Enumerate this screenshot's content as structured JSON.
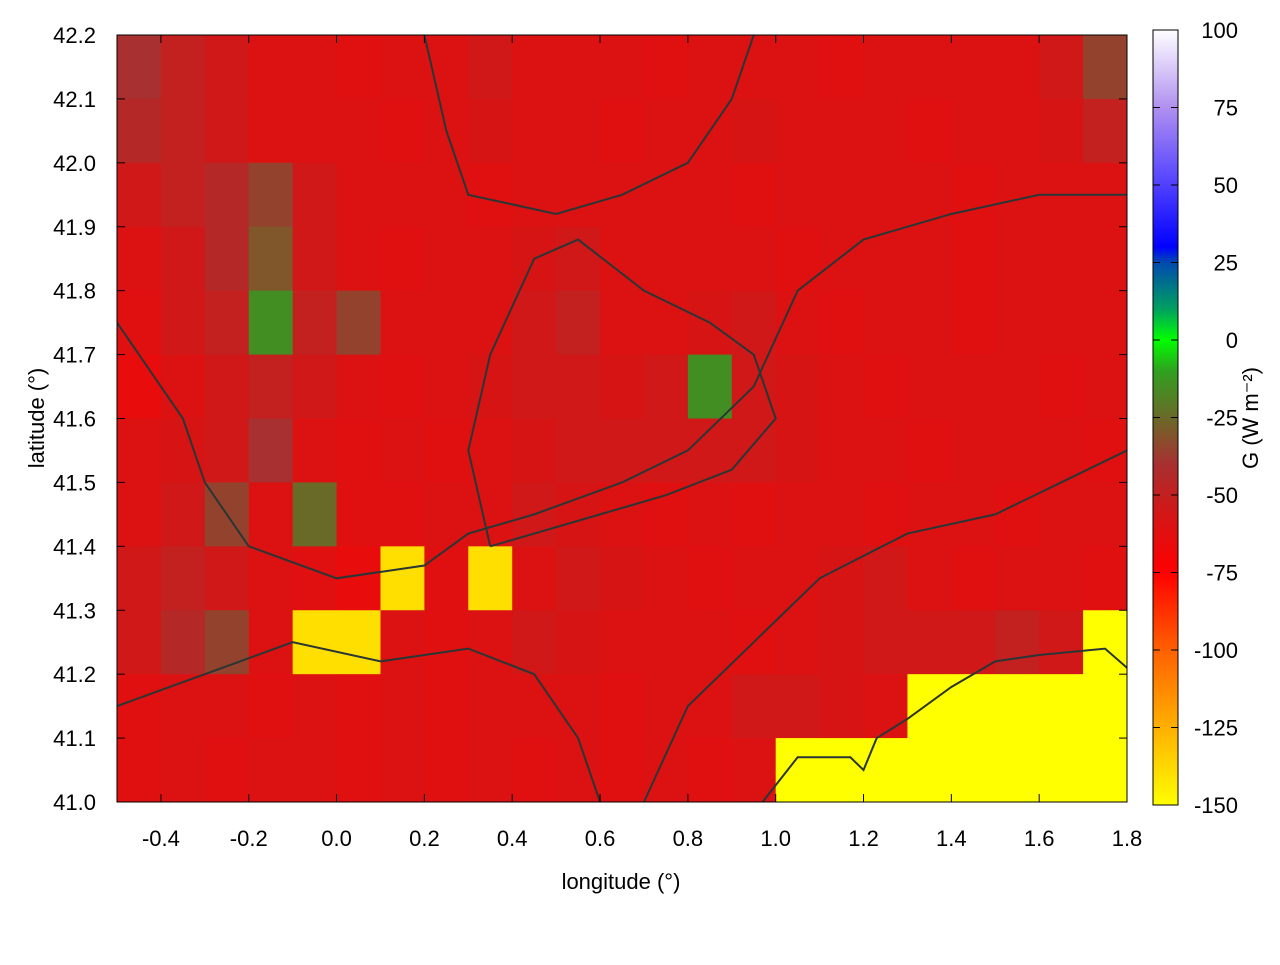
{
  "chart_data": {
    "type": "heatmap",
    "title": "",
    "xlabel": "longitude (°)",
    "ylabel": "latitude (°)",
    "colorbar_label": "G (W m⁻²)",
    "xlim": [
      -0.5,
      1.8
    ],
    "ylim": [
      41.0,
      42.2
    ],
    "clim": [
      -150,
      100
    ],
    "grid": false,
    "x_ticks": [
      "-0.4",
      "-0.2",
      "0.0",
      "0.2",
      "0.4",
      "0.6",
      "0.8",
      "1.0",
      "1.2",
      "1.4",
      "1.6",
      "1.8"
    ],
    "y_ticks": [
      "41.0",
      "41.1",
      "41.2",
      "41.3",
      "41.4",
      "41.5",
      "41.6",
      "41.7",
      "41.8",
      "41.9",
      "42.0",
      "42.1",
      "42.2"
    ],
    "colorbar_ticks": [
      "100",
      "75",
      "50",
      "25",
      "0",
      "-25",
      "-50",
      "-75",
      "-100",
      "-125",
      "-150"
    ],
    "colormap": [
      {
        "value": -150,
        "color": "#ffff00"
      },
      {
        "value": -125,
        "color": "#ffb000"
      },
      {
        "value": -100,
        "color": "#ff6000"
      },
      {
        "value": -75,
        "color": "#ff0000"
      },
      {
        "value": -55,
        "color": "#d01818"
      },
      {
        "value": -40,
        "color": "#a83030"
      },
      {
        "value": -25,
        "color": "#6a6a28"
      },
      {
        "value": -10,
        "color": "#30a020"
      },
      {
        "value": 0,
        "color": "#00ff00"
      },
      {
        "value": 10,
        "color": "#00a060"
      },
      {
        "value": 25,
        "color": "#004ab0"
      },
      {
        "value": 30,
        "color": "#0000ff"
      },
      {
        "value": 50,
        "color": "#5040ff"
      },
      {
        "value": 75,
        "color": "#b090f0"
      },
      {
        "value": 100,
        "color": "#ffffff"
      }
    ],
    "grid_lon": [
      -0.45,
      -0.35,
      -0.25,
      -0.15,
      -0.05,
      0.05,
      0.15,
      0.25,
      0.35,
      0.45,
      0.55,
      0.65,
      0.75,
      0.85,
      0.95,
      1.05,
      1.15,
      1.25,
      1.35,
      1.45,
      1.55,
      1.65,
      1.75
    ],
    "grid_lat": [
      42.15,
      42.05,
      41.95,
      41.85,
      41.75,
      41.65,
      41.55,
      41.45,
      41.35,
      41.25,
      41.15,
      41.05
    ],
    "values": [
      [
        -40,
        -50,
        -55,
        -60,
        -60,
        -62,
        -60,
        -60,
        -55,
        -60,
        -60,
        -60,
        -62,
        -60,
        -60,
        -60,
        -62,
        -60,
        -60,
        -60,
        -60,
        -55,
        -35
      ],
      [
        -45,
        -50,
        -55,
        -60,
        -60,
        -60,
        -62,
        -60,
        -58,
        -60,
        -60,
        -62,
        -60,
        -60,
        -58,
        -60,
        -60,
        -60,
        -62,
        -60,
        -60,
        -58,
        -50
      ],
      [
        -55,
        -50,
        -45,
        -35,
        -55,
        -60,
        -60,
        -60,
        -62,
        -60,
        -60,
        -60,
        -60,
        -60,
        -62,
        -60,
        -60,
        -60,
        -60,
        -62,
        -60,
        -60,
        -60
      ],
      [
        -60,
        -55,
        -45,
        -30,
        -55,
        -60,
        -62,
        -60,
        -60,
        -58,
        -55,
        -60,
        -60,
        -60,
        -60,
        -62,
        -60,
        -60,
        -60,
        -62,
        -60,
        -60,
        -60
      ],
      [
        -62,
        -55,
        -50,
        -15,
        -50,
        -35,
        -60,
        -60,
        -60,
        -55,
        -50,
        -60,
        -60,
        -58,
        -55,
        -60,
        -62,
        -60,
        -60,
        -62,
        -60,
        -60,
        -60
      ],
      [
        -65,
        -60,
        -55,
        -50,
        -55,
        -60,
        -62,
        -60,
        -58,
        -55,
        -55,
        -58,
        -55,
        -15,
        -55,
        -58,
        -60,
        -62,
        -60,
        -60,
        -60,
        -62,
        -60
      ],
      [
        -60,
        -58,
        -55,
        -40,
        -60,
        -62,
        -60,
        -62,
        -60,
        -58,
        -55,
        -55,
        -55,
        -55,
        -55,
        -58,
        -60,
        -60,
        -62,
        -60,
        -60,
        -60,
        -62
      ],
      [
        -60,
        -55,
        -35,
        -60,
        -25,
        -62,
        -62,
        -60,
        -60,
        -55,
        -58,
        -60,
        -62,
        -60,
        -62,
        -60,
        -60,
        -62,
        -60,
        -60,
        -62,
        -60,
        -60
      ],
      [
        -55,
        -50,
        -55,
        -60,
        -62,
        -65,
        -140,
        -62,
        -140,
        -60,
        -55,
        -58,
        -60,
        -62,
        -60,
        -60,
        -58,
        -55,
        -60,
        -62,
        -60,
        -60,
        -62
      ],
      [
        -55,
        -45,
        -35,
        -60,
        -140,
        -140,
        -60,
        -62,
        -60,
        -55,
        -58,
        -60,
        -60,
        -60,
        -62,
        -60,
        -58,
        -55,
        -55,
        -55,
        -50,
        -55,
        -150
      ],
      [
        -62,
        -60,
        -60,
        -62,
        -60,
        -62,
        -60,
        -62,
        -60,
        -60,
        -60,
        -62,
        -60,
        -60,
        -55,
        -55,
        -58,
        -60,
        -150,
        -150,
        -150,
        -150,
        -150
      ],
      [
        -62,
        -60,
        -62,
        -60,
        -60,
        -62,
        -60,
        -62,
        -60,
        -62,
        -60,
        -62,
        -60,
        -62,
        -60,
        -150,
        -150,
        -150,
        -150,
        -150,
        -150,
        -150,
        -150
      ]
    ],
    "contours": [
      [
        [
          0.97,
          41.0
        ],
        [
          1.05,
          41.07
        ],
        [
          1.17,
          41.07
        ],
        [
          1.2,
          41.05
        ],
        [
          1.23,
          41.1
        ],
        [
          1.3,
          41.13
        ],
        [
          1.4,
          41.18
        ],
        [
          1.5,
          41.22
        ],
        [
          1.6,
          41.23
        ],
        [
          1.75,
          41.24
        ],
        [
          1.8,
          41.21
        ]
      ],
      [
        [
          -0.5,
          41.75
        ],
        [
          -0.35,
          41.6
        ],
        [
          -0.3,
          41.5
        ],
        [
          -0.2,
          41.4
        ],
        [
          0.0,
          41.35
        ],
        [
          0.2,
          41.37
        ],
        [
          0.3,
          41.42
        ],
        [
          0.45,
          41.45
        ],
        [
          0.65,
          41.5
        ],
        [
          0.8,
          41.55
        ],
        [
          0.95,
          41.65
        ],
        [
          1.05,
          41.8
        ],
        [
          1.2,
          41.88
        ],
        [
          1.4,
          41.92
        ],
        [
          1.6,
          41.95
        ],
        [
          1.8,
          41.95
        ]
      ],
      [
        [
          0.35,
          41.4
        ],
        [
          0.3,
          41.55
        ],
        [
          0.35,
          41.7
        ],
        [
          0.45,
          41.85
        ],
        [
          0.55,
          41.88
        ],
        [
          0.7,
          41.8
        ],
        [
          0.85,
          41.75
        ],
        [
          0.95,
          41.7
        ],
        [
          1.0,
          41.6
        ],
        [
          0.9,
          41.52
        ],
        [
          0.75,
          41.48
        ],
        [
          0.6,
          41.45
        ],
        [
          0.45,
          41.42
        ],
        [
          0.35,
          41.4
        ]
      ],
      [
        [
          -0.5,
          41.15
        ],
        [
          -0.3,
          41.2
        ],
        [
          -0.1,
          41.25
        ],
        [
          0.1,
          41.22
        ],
        [
          0.3,
          41.24
        ],
        [
          0.45,
          41.2
        ],
        [
          0.55,
          41.1
        ],
        [
          0.6,
          41.0
        ]
      ],
      [
        [
          0.2,
          42.2
        ],
        [
          0.25,
          42.05
        ],
        [
          0.3,
          41.95
        ],
        [
          0.5,
          41.92
        ],
        [
          0.65,
          41.95
        ],
        [
          0.8,
          42.0
        ],
        [
          0.9,
          42.1
        ],
        [
          0.95,
          42.2
        ]
      ],
      [
        [
          0.7,
          41.0
        ],
        [
          0.8,
          41.15
        ],
        [
          0.95,
          41.25
        ],
        [
          1.1,
          41.35
        ],
        [
          1.3,
          41.42
        ],
        [
          1.5,
          41.45
        ],
        [
          1.65,
          41.5
        ],
        [
          1.8,
          41.55
        ]
      ]
    ]
  }
}
